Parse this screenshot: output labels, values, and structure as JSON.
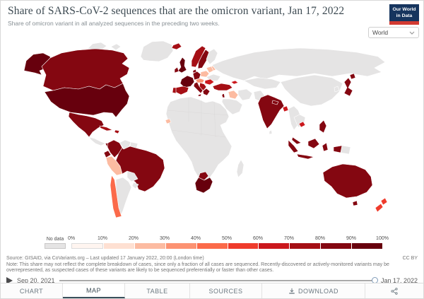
{
  "header": {
    "title": "Share of SARS-CoV-2 sequences that are the omicron variant, Jan 17, 2022",
    "subtitle": "Share of omicron variant in all analyzed sequences in the preceding two weeks.",
    "logo_line1": "Our World",
    "logo_line2": "in Data",
    "region_selector_value": "World"
  },
  "legend": {
    "no_data_label": "No data",
    "tick_labels": [
      "0%",
      "10%",
      "20%",
      "30%",
      "40%",
      "50%",
      "60%",
      "70%",
      "80%",
      "90%",
      "100%"
    ],
    "bin_colors": [
      "#fff5f0",
      "#fee0d2",
      "#fcbba1",
      "#fc9272",
      "#fb6a4a",
      "#ef3b2c",
      "#cb181d",
      "#a50f15",
      "#840711",
      "#67000d"
    ],
    "no_data_color": "#e5e4e4"
  },
  "map": {
    "countries": {
      "greenland": "nd",
      "arctic_islands": "nd",
      "alaska": 9,
      "canada": 8,
      "usa": 9,
      "mexico": 8,
      "central_america": "nd",
      "panama": 8,
      "cuba": 7,
      "hispaniola": 7,
      "colombia": 8,
      "venezuela": "nd",
      "guyanas": "nd",
      "ecuador": 8,
      "peru": 2,
      "brazil": 8,
      "bolivia": "nd",
      "paraguay": "nd",
      "chile": 4,
      "argentina": "nd",
      "iceland": 7,
      "uk": 9,
      "ireland": 8,
      "norway": 7,
      "sweden": 8,
      "finland": "nd",
      "denmark": 8,
      "germany": 8,
      "france": 9,
      "spain": 7,
      "portugal": 7,
      "poland": 2,
      "czech_austria": 3,
      "belarus": 2,
      "baltics": 2,
      "ukraine": "nd",
      "romania": 6,
      "balkans": 7,
      "greece": 8,
      "italy": 8,
      "sicily": 8,
      "turkey": 7,
      "georgia": 6,
      "israel": 8,
      "iraq": 2,
      "saudi_peninsula": "nd",
      "iran": "nd",
      "russia": "nd",
      "central_asia": "nd",
      "china_mongolia": "nd",
      "pakistan": "nd",
      "india": 8,
      "nepal": 8,
      "bangladesh": 6,
      "sri_lanka": "nd",
      "myanmar_thailand": "nd",
      "indochina": "nd",
      "cambodia": 6,
      "malay_peninsula": 8,
      "borneo": 8,
      "sumatra": 8,
      "java": 8,
      "sulawesi": 8,
      "west_papua": 8,
      "png": "nd",
      "philippines": 8,
      "japan": 8,
      "hokkaido": 8,
      "south_korea": "nd",
      "australia": 8,
      "tasmania": 8,
      "nz_north": 5,
      "nz_south": 5,
      "africa_main": "nd",
      "senegal": 2,
      "south_africa": 9,
      "botswana": 8,
      "madagascar": "nd"
    }
  },
  "chart_data": {
    "type": "choropleth_map",
    "title": "Share of SARS-CoV-2 sequences that are the omicron variant, Jan 17, 2022",
    "unit": "%",
    "date": "Jan 17, 2022",
    "legend_bins": [
      "0-10%",
      "10-20%",
      "20-30%",
      "30-40%",
      "40-50%",
      "50-60%",
      "60-70%",
      "70-80%",
      "80-90%",
      "90-100%",
      "No data"
    ],
    "entities": [
      {
        "name": "United States",
        "share": "90-100%"
      },
      {
        "name": "Canada",
        "share": "80-90%"
      },
      {
        "name": "Greenland",
        "share": "No data"
      },
      {
        "name": "Mexico",
        "share": "80-90%"
      },
      {
        "name": "Cuba",
        "share": "70-80%"
      },
      {
        "name": "Panama",
        "share": "80-90%"
      },
      {
        "name": "Colombia",
        "share": "80-90%"
      },
      {
        "name": "Ecuador",
        "share": "80-90%"
      },
      {
        "name": "Venezuela",
        "share": "No data"
      },
      {
        "name": "Peru",
        "share": "20-30%"
      },
      {
        "name": "Brazil",
        "share": "80-90%"
      },
      {
        "name": "Bolivia",
        "share": "No data"
      },
      {
        "name": "Chile",
        "share": "40-50%"
      },
      {
        "name": "Argentina",
        "share": "No data"
      },
      {
        "name": "Iceland",
        "share": "70-80%"
      },
      {
        "name": "United Kingdom",
        "share": "90-100%"
      },
      {
        "name": "Ireland",
        "share": "80-90%"
      },
      {
        "name": "Norway",
        "share": "70-80%"
      },
      {
        "name": "Sweden",
        "share": "80-90%"
      },
      {
        "name": "Finland",
        "share": "No data"
      },
      {
        "name": "Denmark",
        "share": "80-90%"
      },
      {
        "name": "Germany",
        "share": "80-90%"
      },
      {
        "name": "France",
        "share": "90-100%"
      },
      {
        "name": "Spain",
        "share": "70-80%"
      },
      {
        "name": "Portugal",
        "share": "70-80%"
      },
      {
        "name": "Poland",
        "share": "20-30%"
      },
      {
        "name": "Czechia / Austria",
        "share": "30-40%"
      },
      {
        "name": "Belarus / Baltics",
        "share": "20-30%"
      },
      {
        "name": "Ukraine",
        "share": "No data"
      },
      {
        "name": "Romania",
        "share": "60-70%"
      },
      {
        "name": "Balkans",
        "share": "70-80%"
      },
      {
        "name": "Greece",
        "share": "80-90%"
      },
      {
        "name": "Italy",
        "share": "80-90%"
      },
      {
        "name": "Turkey",
        "share": "70-80%"
      },
      {
        "name": "Georgia",
        "share": "60-70%"
      },
      {
        "name": "Israel",
        "share": "80-90%"
      },
      {
        "name": "Iraq",
        "share": "20-30%"
      },
      {
        "name": "Saudi Arabia",
        "share": "No data"
      },
      {
        "name": "Iran",
        "share": "No data"
      },
      {
        "name": "Russia",
        "share": "No data"
      },
      {
        "name": "Kazakhstan",
        "share": "No data"
      },
      {
        "name": "China",
        "share": "No data"
      },
      {
        "name": "Pakistan",
        "share": "No data"
      },
      {
        "name": "India",
        "share": "80-90%"
      },
      {
        "name": "Nepal",
        "share": "80-90%"
      },
      {
        "name": "Bangladesh",
        "share": "60-70%"
      },
      {
        "name": "Thailand",
        "share": "No data"
      },
      {
        "name": "Vietnam",
        "share": "No data"
      },
      {
        "name": "Cambodia",
        "share": "60-70%"
      },
      {
        "name": "Malaysia",
        "share": "80-90%"
      },
      {
        "name": "Indonesia",
        "share": "80-90%"
      },
      {
        "name": "Philippines",
        "share": "80-90%"
      },
      {
        "name": "Japan",
        "share": "80-90%"
      },
      {
        "name": "South Korea",
        "share": "No data"
      },
      {
        "name": "Papua New Guinea",
        "share": "No data"
      },
      {
        "name": "Australia",
        "share": "80-90%"
      },
      {
        "name": "New Zealand",
        "share": "50-60%"
      },
      {
        "name": "Senegal",
        "share": "20-30%"
      },
      {
        "name": "South Africa",
        "share": "90-100%"
      },
      {
        "name": "Botswana",
        "share": "80-90%"
      },
      {
        "name": "Madagascar",
        "share": "No data"
      }
    ]
  },
  "footer": {
    "source": "Source: GISAID, via CoVariants.org – Last updated 17 January 2022, 20:00 (London time)",
    "license": "CC BY",
    "note": "Note: This share may not reflect the complete breakdown of cases, since only a fraction of all cases are sequenced. Recently-discovered or actively-monitored variants may be overrepresented, as suspected cases of these variants are likely to be sequenced preferentially or faster than other cases."
  },
  "timeline": {
    "start_date": "Sep 20, 2021",
    "end_date": "Jan 17, 2022"
  },
  "tabs": [
    {
      "label": "CHART",
      "active": false
    },
    {
      "label": "MAP",
      "active": true
    },
    {
      "label": "TABLE",
      "active": false
    },
    {
      "label": "SOURCES",
      "active": false
    },
    {
      "label": "DOWNLOAD",
      "active": false,
      "icon": "download"
    }
  ],
  "icons": {
    "dropdown": "chevron-down",
    "play": "play-triangle",
    "download": "download-tray",
    "share": "share-nodes"
  }
}
